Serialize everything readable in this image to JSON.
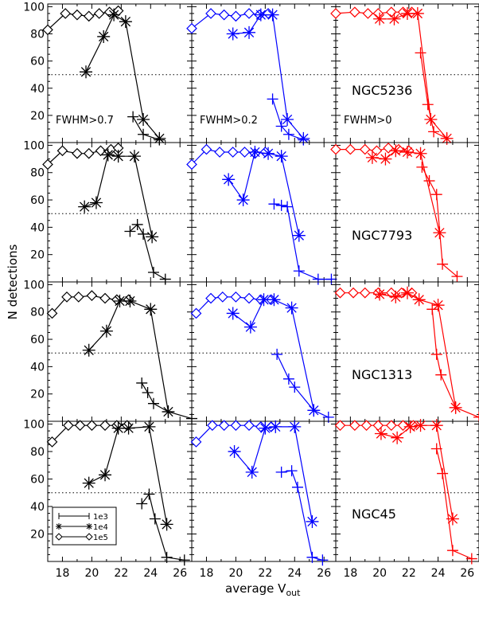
{
  "chart_data": {
    "type": "line",
    "ylabel": "N detections",
    "xlabel": "average V",
    "xlabel_subscript": "out",
    "xlim": [
      17,
      26.8
    ],
    "ylim": [
      0,
      102
    ],
    "xticks": [
      18,
      20,
      22,
      24,
      26
    ],
    "yticks": [
      20,
      40,
      60,
      80,
      100
    ],
    "reference_line": 50,
    "column_labels": [
      "FWHM>0.7",
      "FWHM>0.2",
      "FWHM>0"
    ],
    "column_colors": [
      "#000000",
      "#0000ff",
      "#ff0000"
    ],
    "legend": [
      {
        "name": "1e3",
        "marker": "plus"
      },
      {
        "name": "1e4",
        "marker": "asterisk"
      },
      {
        "name": "1e5",
        "marker": "diamond"
      }
    ],
    "rows": [
      {
        "galaxy": "NGC5236",
        "panels": [
          {
            "series": [
              {
                "name": "1e5",
                "x": [
                  17,
                  18.2,
                  19,
                  19.8,
                  20.5,
                  21.2,
                  21.8
                ],
                "y": [
                  83,
                  95,
                  94,
                  93,
                  95,
                  96,
                  97
                ]
              },
              {
                "name": "1e4",
                "x": [
                  19.6,
                  20.8,
                  21.5,
                  22.3,
                  23.5,
                  24.6
                ],
                "y": [
                  52,
                  78,
                  94,
                  89,
                  17,
                  3
                ]
              },
              {
                "name": "1e3",
                "x": [
                  22.8,
                  23.5,
                  24.6
                ],
                "y": [
                  19,
                  6,
                  2
                ]
              }
            ]
          },
          {
            "series": [
              {
                "name": "1e5",
                "x": [
                  17,
                  18.3,
                  19.2,
                  20,
                  20.9,
                  21.6,
                  22.2
                ],
                "y": [
                  84,
                  95,
                  94,
                  93,
                  95,
                  94,
                  95
                ]
              },
              {
                "name": "1e4",
                "x": [
                  19.8,
                  20.9,
                  21.7,
                  22.5,
                  23.5,
                  24.6
                ],
                "y": [
                  80,
                  81,
                  94,
                  94,
                  17,
                  3
                ]
              },
              {
                "name": "1e3",
                "x": [
                  22.5,
                  23.1,
                  23.6,
                  24.6
                ],
                "y": [
                  32,
                  12,
                  6,
                  2
                ]
              }
            ]
          },
          {
            "series": [
              {
                "name": "1e5",
                "x": [
                  17,
                  18.3,
                  19.2,
                  19.9,
                  20.8,
                  21.6,
                  22.2
                ],
                "y": [
                  95,
                  96,
                  95,
                  95,
                  96,
                  96,
                  96
                ]
              },
              {
                "name": "1e4",
                "x": [
                  20,
                  21,
                  21.9,
                  22.6,
                  23.5,
                  24.6
                ],
                "y": [
                  91,
                  91,
                  95,
                  95,
                  17,
                  3
                ]
              },
              {
                "name": "1e3",
                "x": [
                  22.8,
                  23.3,
                  23.7,
                  24.6
                ],
                "y": [
                  66,
                  28,
                  8,
                  3
                ]
              }
            ]
          }
        ]
      },
      {
        "galaxy": "NGC7793",
        "panels": [
          {
            "series": [
              {
                "name": "1e5",
                "x": [
                  17,
                  18,
                  19,
                  19.8,
                  20.6,
                  21.3,
                  21.8
                ],
                "y": [
                  86,
                  96,
                  94,
                  94,
                  96,
                  97,
                  98
                ]
              },
              {
                "name": "1e4",
                "x": [
                  19.5,
                  20.3,
                  21.1,
                  21.8,
                  22.9,
                  24.1
                ],
                "y": [
                  55,
                  58,
                  93,
                  92,
                  92,
                  33
                ]
              },
              {
                "name": "1e3",
                "x": [
                  22.6,
                  23.1,
                  23.5,
                  24.2,
                  25
                ],
                "y": [
                  37,
                  42,
                  35,
                  7,
                  2
                ]
              }
            ]
          },
          {
            "series": [
              {
                "name": "1e5",
                "x": [
                  17,
                  18,
                  18.9,
                  19.8,
                  20.6,
                  21.3,
                  22
                ],
                "y": [
                  86,
                  97,
                  95,
                  95,
                  95,
                  94,
                  95
                ]
              },
              {
                "name": "1e4",
                "x": [
                  19.5,
                  20.5,
                  21.3,
                  22.2,
                  23.1,
                  24.3
                ],
                "y": [
                  75,
                  60,
                  95,
                  94,
                  92,
                  34
                ]
              },
              {
                "name": "1e3",
                "x": [
                  22.6,
                  23.1,
                  23.5,
                  24.3,
                  25.6,
                  26.5
                ],
                "y": [
                  57,
                  56,
                  55,
                  8,
                  2,
                  2
                ]
              }
            ]
          },
          {
            "series": [
              {
                "name": "1e5",
                "x": [
                  17,
                  18,
                  19,
                  19.8,
                  20.6,
                  21.3,
                  22
                ],
                "y": [
                  97,
                  97,
                  97,
                  96,
                  98,
                  97,
                  96
                ]
              },
              {
                "name": "1e4",
                "x": [
                  19.5,
                  20.4,
                  21.1,
                  21.9,
                  22.8,
                  24.1
                ],
                "y": [
                  91,
                  90,
                  96,
                  95,
                  94,
                  36
                ]
              },
              {
                "name": "1e3",
                "x": [
                  22.9,
                  23.4,
                  23.9,
                  24.3,
                  25.3
                ],
                "y": [
                  84,
                  74,
                  64,
                  13,
                  4
                ]
              }
            ]
          }
        ]
      },
      {
        "galaxy": "NGC1313",
        "panels": [
          {
            "series": [
              {
                "name": "1e5",
                "x": [
                  17.3,
                  18.3,
                  19.1,
                  20,
                  20.9,
                  21.7,
                  22.5
                ],
                "y": [
                  79,
                  91,
                  91,
                  92,
                  90,
                  89,
                  89
                ]
              },
              {
                "name": "1e4",
                "x": [
                  19.8,
                  21,
                  21.9,
                  22.6,
                  24,
                  25.2
                ],
                "y": [
                  52,
                  66,
                  88,
                  88,
                  82,
                  7
                ]
              },
              {
                "name": "1e3",
                "x": [
                  23.4,
                  23.8,
                  24.2,
                  25.2,
                  26.8
                ],
                "y": [
                  28,
                  21,
                  13,
                  7,
                  2
                ]
              }
            ]
          },
          {
            "series": [
              {
                "name": "1e5",
                "x": [
                  17.3,
                  18.3,
                  19.1,
                  20,
                  20.9,
                  21.7,
                  22.4
                ],
                "y": [
                  79,
                  90,
                  91,
                  91,
                  90,
                  89,
                  89
                ]
              },
              {
                "name": "1e4",
                "x": [
                  19.8,
                  21,
                  21.9,
                  22.6,
                  23.8,
                  25.3
                ],
                "y": [
                  79,
                  69,
                  89,
                  89,
                  83,
                  8
                ]
              },
              {
                "name": "1e3",
                "x": [
                  22.8,
                  23.6,
                  24,
                  25.3,
                  26.3
                ],
                "y": [
                  49,
                  31,
                  25,
                  8,
                  3
                ]
              }
            ]
          },
          {
            "series": [
              {
                "name": "1e5",
                "x": [
                  17.3,
                  18.2,
                  19,
                  19.9,
                  20.8,
                  21.5,
                  22.2
                ],
                "y": [
                  94,
                  94,
                  94,
                  94,
                  94,
                  94,
                  94
                ]
              },
              {
                "name": "1e4",
                "x": [
                  20,
                  21.1,
                  21.9,
                  22.7,
                  24,
                  25.2
                ],
                "y": [
                  93,
                  91,
                  94,
                  89,
                  85,
                  10
                ]
              },
              {
                "name": "1e3",
                "x": [
                  23.6,
                  23.9,
                  24.2,
                  25.2,
                  26.8
                ],
                "y": [
                  82,
                  49,
                  34,
                  10,
                  3
                ]
              }
            ]
          }
        ]
      },
      {
        "galaxy": "NGC45",
        "panels": [
          {
            "series": [
              {
                "name": "1e5",
                "x": [
                  17.3,
                  18.4,
                  19.2,
                  20,
                  20.9,
                  21.7,
                  22.4
                ],
                "y": [
                  87,
                  99,
                  99,
                  99,
                  99,
                  99,
                  99
                ]
              },
              {
                "name": "1e4",
                "x": [
                  19.8,
                  20.9,
                  21.8,
                  22.5,
                  23.9,
                  25.1
                ],
                "y": [
                  57,
                  63,
                  97,
                  97,
                  98,
                  27
                ]
              },
              {
                "name": "1e3",
                "x": [
                  23.4,
                  23.9,
                  24.3,
                  25.1,
                  26.3
                ],
                "y": [
                  42,
                  49,
                  31,
                  3,
                  1
                ]
              }
            ]
          },
          {
            "series": [
              {
                "name": "1e5",
                "x": [
                  17.3,
                  18.4,
                  19.2,
                  20,
                  20.9,
                  21.7,
                  22.4
                ],
                "y": [
                  87,
                  99,
                  99,
                  99,
                  99,
                  98,
                  98
                ]
              },
              {
                "name": "1e4",
                "x": [
                  19.9,
                  21.1,
                  22,
                  22.7,
                  24,
                  25.2
                ],
                "y": [
                  80,
                  65,
                  97,
                  98,
                  98,
                  29
                ]
              },
              {
                "name": "1e3",
                "x": [
                  23.1,
                  23.8,
                  24.2,
                  25.2,
                  25.9
                ],
                "y": [
                  65,
                  66,
                  54,
                  3,
                  1
                ]
              }
            ]
          },
          {
            "series": [
              {
                "name": "1e5",
                "x": [
                  17.3,
                  18.3,
                  19.1,
                  19.9,
                  20.8,
                  21.6,
                  22.3
                ],
                "y": [
                  99,
                  99,
                  99,
                  99,
                  99,
                  99,
                  99
                ]
              },
              {
                "name": "1e4",
                "x": [
                  20.1,
                  21.2,
                  22.1,
                  22.8,
                  23.9,
                  25
                ],
                "y": [
                  93,
                  90,
                  98,
                  99,
                  99,
                  31
                ]
              },
              {
                "name": "1e3",
                "x": [
                  23.9,
                  24.3,
                  25,
                  26.3
                ],
                "y": [
                  82,
                  64,
                  8,
                  2
                ]
              }
            ]
          }
        ]
      }
    ]
  }
}
